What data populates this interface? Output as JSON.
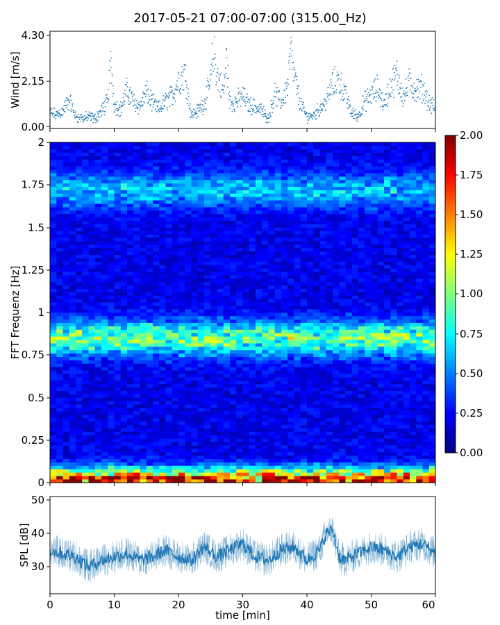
{
  "chart_data": [
    {
      "type": "scatter",
      "title": "2017-05-21 07:00-07:00 (315.00_Hz)",
      "ylabel": "Wind [m/s]",
      "xlim": [
        0,
        60
      ],
      "ylim": [
        -0.1,
        4.35
      ],
      "yticks": [
        "0.00",
        "2.15",
        "4.30"
      ],
      "xticks": [
        0,
        10,
        20,
        30,
        40,
        50,
        60
      ],
      "color": "#1f77b4",
      "x": [
        0,
        1,
        2,
        3,
        4,
        5,
        6,
        7,
        8,
        9,
        9.5,
        10,
        11,
        12,
        13,
        14,
        15,
        16,
        17,
        18,
        19,
        20,
        21,
        22,
        23,
        24,
        25,
        25.5,
        26,
        27,
        27.5,
        28,
        29,
        30,
        31,
        32,
        33,
        34,
        35,
        36,
        37,
        37.5,
        38,
        39,
        40,
        41,
        42,
        43,
        44,
        45,
        46,
        47,
        48,
        49,
        50,
        51,
        52,
        53,
        54,
        55,
        56,
        57,
        58,
        59,
        60
      ],
      "values": [
        0.7,
        0.6,
        0.8,
        1.4,
        0.5,
        0.4,
        0.5,
        0.4,
        0.8,
        1.3,
        3.5,
        1.1,
        0.9,
        1.9,
        1.3,
        1.0,
        1.8,
        1.2,
        0.9,
        1.3,
        1.6,
        2.4,
        2.8,
        0.6,
        0.8,
        1.2,
        2.3,
        4.2,
        2.7,
        1.8,
        3.5,
        1.2,
        1.3,
        1.6,
        1.1,
        1.0,
        0.8,
        0.4,
        1.7,
        1.2,
        2.1,
        3.9,
        2.6,
        1.2,
        0.5,
        0.6,
        0.9,
        1.3,
        2.2,
        2.4,
        1.6,
        0.7,
        0.5,
        1.3,
        1.6,
        2.0,
        1.1,
        2.1,
        2.7,
        1.5,
        2.3,
        1.9,
        2.0,
        1.2,
        0.9
      ]
    },
    {
      "type": "heatmap",
      "ylabel": "FFT Frequenz [Hz]",
      "xlim": [
        0,
        60
      ],
      "ylim": [
        0,
        2
      ],
      "yticks": [
        "0",
        "0.25",
        "0.5",
        "0.75",
        "1",
        "1.25",
        "1.5",
        "1.75",
        "2"
      ],
      "colormap": "jet",
      "colorbar_range": [
        0,
        2
      ],
      "colorbar_ticks": [
        "0.00",
        "0.25",
        "0.50",
        "0.75",
        "1.00",
        "1.25",
        "1.50",
        "1.75",
        "2.00"
      ],
      "bands": [
        {
          "frequency_hz": 0.02,
          "level": 1.3
        },
        {
          "frequency_hz": 0.85,
          "level": 0.8
        },
        {
          "frequency_hz": 1.72,
          "level": 0.45
        }
      ],
      "background_level": 0.2
    },
    {
      "type": "line",
      "ylabel": "SPL [dB]",
      "xlabel": "time [min]",
      "xlim": [
        0,
        60
      ],
      "ylim": [
        22,
        51
      ],
      "yticks": [
        "30",
        "40",
        "50"
      ],
      "xticks": [
        "0",
        "10",
        "20",
        "30",
        "40",
        "50",
        "60"
      ],
      "color": "#1f77b4",
      "x": [
        0,
        2,
        4,
        6,
        8,
        10,
        12,
        14,
        16,
        18,
        20,
        22,
        24,
        26,
        28,
        30,
        32,
        34,
        36,
        38,
        40,
        42,
        43,
        44,
        45,
        46,
        48,
        50,
        52,
        54,
        56,
        58,
        60
      ],
      "values": [
        35,
        34,
        33,
        30,
        32,
        33,
        34,
        32,
        33,
        35,
        33,
        32,
        36,
        33,
        35,
        37,
        33,
        32,
        35,
        36,
        32,
        35,
        40,
        41,
        33,
        32,
        34,
        36,
        35,
        33,
        36,
        37,
        34
      ]
    }
  ]
}
